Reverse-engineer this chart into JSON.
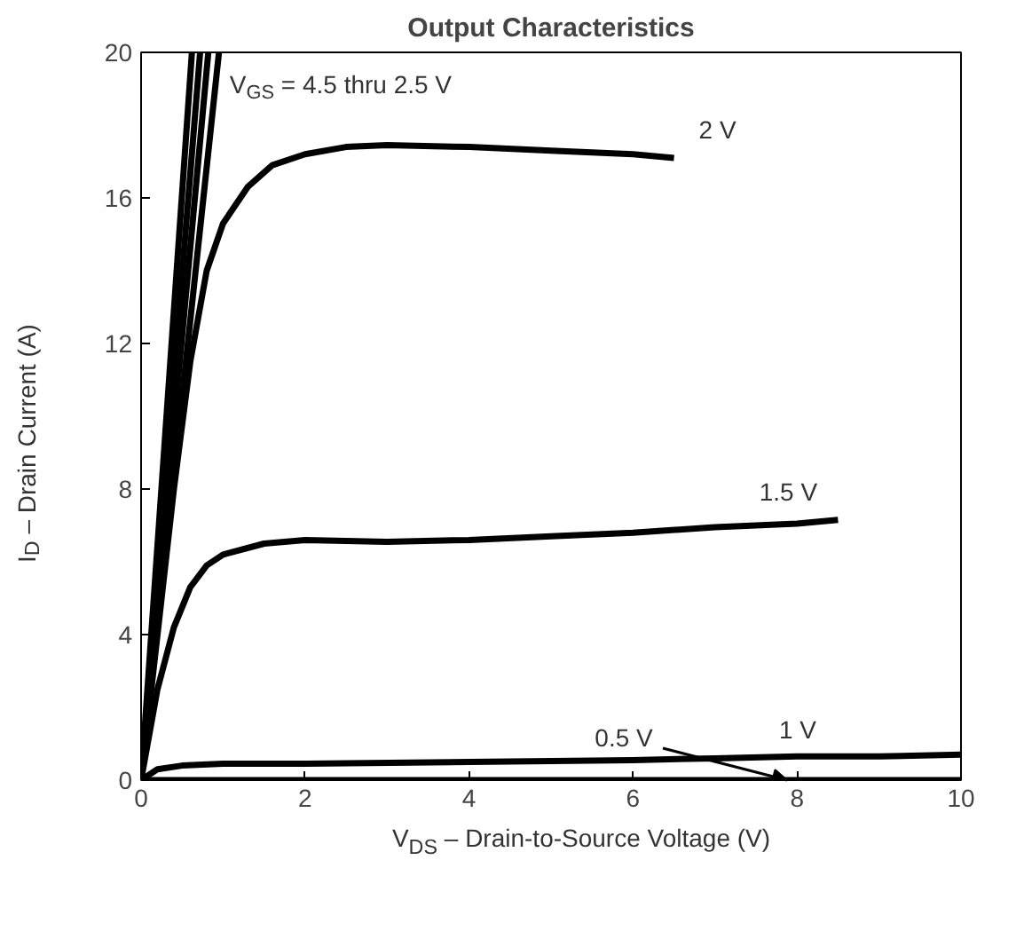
{
  "chart_data": {
    "type": "line",
    "title": "Output Characteristics",
    "xlabel": "V$_{DS}$ – Drain-to-Source Voltage (V)",
    "ylabel": "I$_{D}$ – Drain Current (A)",
    "xlim": [
      0,
      10
    ],
    "ylim": [
      0,
      20
    ],
    "xticks": [
      0,
      2,
      4,
      6,
      8,
      10
    ],
    "yticks": [
      0,
      4,
      8,
      12,
      16,
      20
    ],
    "grid": false,
    "marker": "none",
    "line_style": "solid",
    "series": [
      {
        "color": "#000000",
        "x": [
          0,
          0.62
        ],
        "values": [
          0,
          20
        ]
      },
      {
        "color": "#000000",
        "x": [
          0,
          0.72
        ],
        "values": [
          0,
          20
        ]
      },
      {
        "color": "#000000",
        "x": [
          0,
          0.82
        ],
        "values": [
          0,
          20
        ]
      },
      {
        "name": "V$_{GS}$ = 4.5 thru 2.5 V",
        "color": "#000000",
        "x": [
          0,
          0.95
        ],
        "values": [
          0,
          20
        ]
      },
      {
        "name": "2 V",
        "color": "#000000",
        "x": [
          0,
          0.2,
          0.4,
          0.6,
          0.8,
          1,
          1.3,
          1.6,
          2,
          2.5,
          3,
          4,
          5,
          6,
          6.5
        ],
        "values": [
          0,
          4,
          8,
          11.5,
          14,
          15.3,
          16.3,
          16.9,
          17.2,
          17.4,
          17.45,
          17.4,
          17.3,
          17.2,
          17.1
        ]
      },
      {
        "name": "1.5 V",
        "color": "#000000",
        "x": [
          0,
          0.2,
          0.4,
          0.6,
          0.8,
          1,
          1.5,
          2,
          3,
          4,
          5,
          6,
          7,
          8,
          8.5
        ],
        "values": [
          0,
          2.5,
          4.2,
          5.3,
          5.9,
          6.2,
          6.5,
          6.6,
          6.55,
          6.6,
          6.7,
          6.8,
          6.95,
          7.05,
          7.15
        ]
      },
      {
        "name": "1 V",
        "color": "#000000",
        "x": [
          0,
          0.2,
          0.5,
          1,
          2,
          4,
          6,
          7,
          8,
          9,
          10
        ],
        "values": [
          0,
          0.3,
          0.4,
          0.45,
          0.45,
          0.5,
          0.55,
          0.6,
          0.65,
          0.65,
          0.7
        ]
      },
      {
        "name": "0.5 V",
        "color": "#000000",
        "x": [
          0,
          10
        ],
        "values": [
          0,
          0
        ]
      }
    ]
  }
}
